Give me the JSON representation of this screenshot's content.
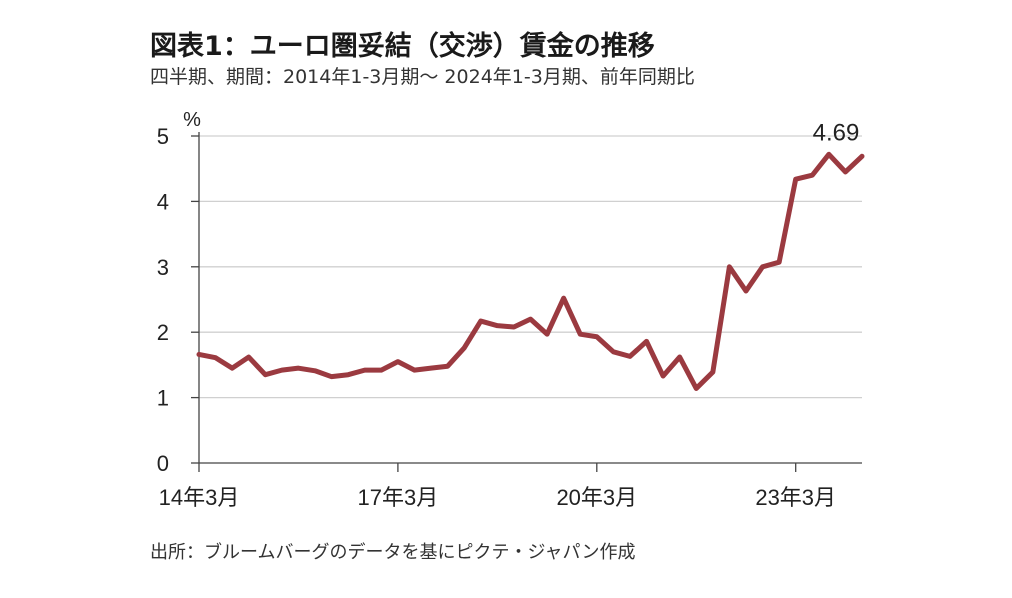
{
  "chart_data": {
    "type": "line",
    "title": "図表1：ユーロ圏妥結（交渉）賃金の推移",
    "subtitle": "四半期、期間：2014年1-3月期～ 2024年1-3月期、前年同期比",
    "source": "出所：ブルームバーグのデータを基にピクテ・ジャパン作成",
    "ylabel": "%",
    "ylim": [
      0,
      5
    ],
    "yticks": [
      "0",
      "1",
      "2",
      "3",
      "4",
      "5"
    ],
    "x_tick_labels": [
      "14年3月",
      "17年3月",
      "20年3月",
      "23年3月"
    ],
    "x_tick_index": [
      0,
      12,
      24,
      36
    ],
    "grid": true,
    "line_color": "#9b3a40",
    "annotation": {
      "text": "4.69",
      "index": 40
    },
    "series": [
      {
        "values": [
          1.66,
          1.61,
          1.45,
          1.62,
          1.35,
          1.42,
          1.45,
          1.41,
          1.32,
          1.35,
          1.42,
          1.42,
          1.55,
          1.42,
          1.45,
          1.48,
          1.76,
          2.17,
          2.1,
          2.08,
          2.2,
          1.97,
          2.52,
          1.97,
          1.93,
          1.7,
          1.63,
          1.86,
          1.33,
          1.62,
          1.14,
          1.39,
          3.0,
          2.63,
          3.0,
          3.07,
          4.34,
          4.4,
          4.72,
          4.45,
          4.69
        ]
      }
    ]
  }
}
